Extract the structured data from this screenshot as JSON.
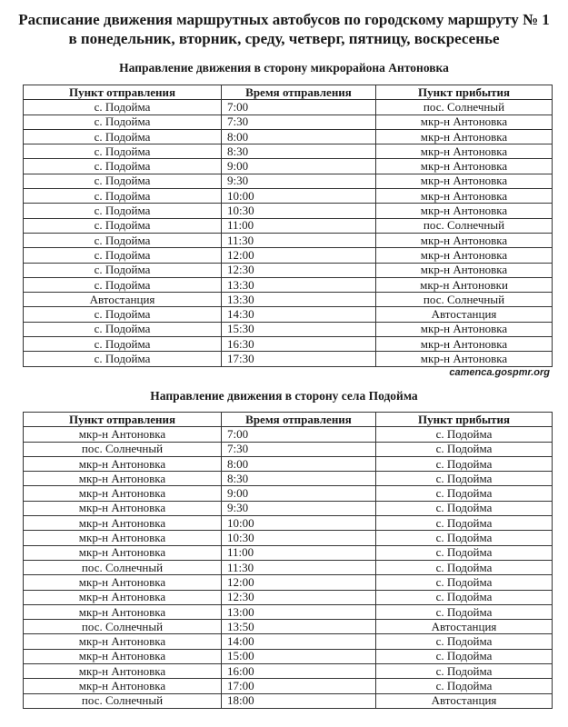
{
  "title_line1": "Расписание движения маршрутных автобусов по городскому маршруту № 1",
  "title_line2": "в понедельник, вторник, среду, четверг, пятницу, воскресенье",
  "columns": [
    "Пункт отправления",
    "Время отправления",
    "Пункт прибытия"
  ],
  "watermark": "camenca.gospmr.org",
  "tables": [
    {
      "heading": "Направление движения в сторону микрорайона Антоновка",
      "rows": [
        [
          "с. Подойма",
          "7:00",
          "пос. Солнечный"
        ],
        [
          "с. Подойма",
          "7:30",
          "мкр-н Антоновка"
        ],
        [
          "с. Подойма",
          "8:00",
          "мкр-н Антоновка"
        ],
        [
          "с. Подойма",
          "8:30",
          "мкр-н Антоновка"
        ],
        [
          "с. Подойма",
          "9:00",
          "мкр-н Антоновка"
        ],
        [
          "с. Подойма",
          "9:30",
          "мкр-н Антоновка"
        ],
        [
          "с. Подойма",
          "10:00",
          "мкр-н Антоновка"
        ],
        [
          "с. Подойма",
          "10:30",
          "мкр-н Антоновка"
        ],
        [
          "с. Подойма",
          "11:00",
          "пос. Солнечный"
        ],
        [
          "с. Подойма",
          "11:30",
          "мкр-н Антоновка"
        ],
        [
          "с. Подойма",
          "12:00",
          "мкр-н Антоновка"
        ],
        [
          "с. Подойма",
          "12:30",
          "мкр-н Антоновка"
        ],
        [
          "с. Подойма",
          "13:30",
          "мкр-н Антоновки"
        ],
        [
          "Автостанция",
          "13:30",
          "пос. Солнечный"
        ],
        [
          "с. Подойма",
          "14:30",
          "Автостанция"
        ],
        [
          "с. Подойма",
          "15:30",
          "мкр-н Антоновка"
        ],
        [
          "с. Подойма",
          "16:30",
          "мкр-н Антоновка"
        ],
        [
          "с. Подойма",
          "17:30",
          "мкр-н Антоновка"
        ]
      ]
    },
    {
      "heading": "Направление движения в сторону села Подойма",
      "rows": [
        [
          "мкр-н Антоновка",
          "7:00",
          "с. Подойма"
        ],
        [
          "пос. Солнечный",
          "7:30",
          "с. Подойма"
        ],
        [
          "мкр-н Антоновка",
          "8:00",
          "с. Подойма"
        ],
        [
          "мкр-н Антоновка",
          "8:30",
          "с. Подойма"
        ],
        [
          "мкр-н Антоновка",
          "9:00",
          "с. Подойма"
        ],
        [
          "мкр-н Антоновка",
          "9:30",
          "с. Подойма"
        ],
        [
          "мкр-н Антоновка",
          "10:00",
          "с. Подойма"
        ],
        [
          "мкр-н Антоновка",
          "10:30",
          "с. Подойма"
        ],
        [
          "мкр-н Антоновка",
          "11:00",
          "с. Подойма"
        ],
        [
          "пос. Солнечный",
          "11:30",
          "с. Подойма"
        ],
        [
          "мкр-н Антоновка",
          "12:00",
          "с. Подойма"
        ],
        [
          "мкр-н Антоновка",
          "12:30",
          "с. Подойма"
        ],
        [
          "мкр-н Антоновка",
          "13:00",
          "с. Подойма"
        ],
        [
          "пос. Солнечный",
          "13:50",
          "Автостанция"
        ],
        [
          "мкр-н Антоновка",
          "14:00",
          "с. Подойма"
        ],
        [
          "мкр-н Антоновка",
          "15:00",
          "с. Подойма"
        ],
        [
          "мкр-н Антоновка",
          "16:00",
          "с. Подойма"
        ],
        [
          "мкр-н Антоновка",
          "17:00",
          "с. Подойма"
        ],
        [
          "пос. Солнечный",
          "18:00",
          "Автостанция"
        ]
      ]
    }
  ]
}
